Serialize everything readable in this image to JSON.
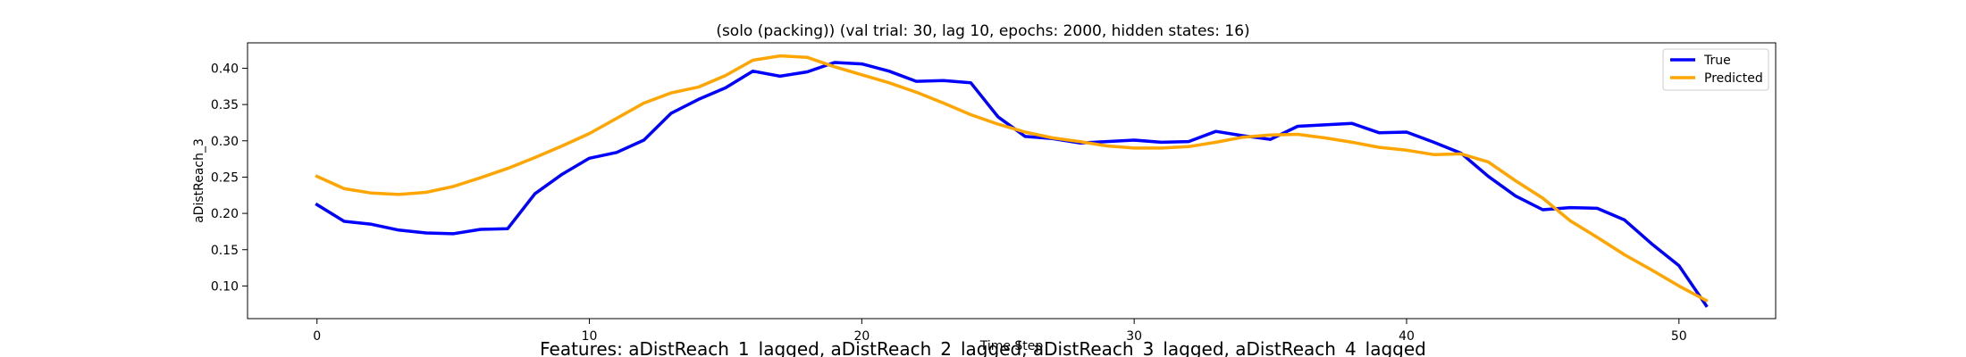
{
  "chart_data": {
    "type": "line",
    "title": "(solo (packing)) (val trial: 30, lag 10, epochs: 2000, hidden states: 16)",
    "xlabel": "Time Step",
    "ylabel": "aDistReach_3",
    "caption": "Features: aDistReach_1_lagged, aDistReach_2_lagged, aDistReach_3_lagged, aDistReach_4_lagged",
    "xlim": [
      -2.55,
      53.55
    ],
    "ylim": [
      0.055,
      0.435
    ],
    "xticks": [
      0,
      10,
      20,
      30,
      40,
      50
    ],
    "yticks": [
      0.1,
      0.15,
      0.2,
      0.25,
      0.3,
      0.35,
      0.4
    ],
    "legend_position": "top-right",
    "grid": false,
    "series": [
      {
        "name": "True",
        "color": "#0000ff",
        "x": [
          0,
          1,
          2,
          3,
          4,
          5,
          6,
          7,
          8,
          9,
          10,
          11,
          12,
          13,
          14,
          15,
          16,
          17,
          18,
          19,
          20,
          21,
          22,
          23,
          24,
          25,
          26,
          27,
          28,
          29,
          30,
          31,
          32,
          33,
          34,
          35,
          36,
          37,
          38,
          39,
          40,
          41,
          42,
          43,
          44,
          45,
          46,
          47,
          48,
          49,
          50,
          51
        ],
        "values": [
          0.212,
          0.189,
          0.185,
          0.177,
          0.173,
          0.172,
          0.178,
          0.179,
          0.227,
          0.254,
          0.276,
          0.284,
          0.301,
          0.338,
          0.357,
          0.373,
          0.396,
          0.389,
          0.395,
          0.408,
          0.406,
          0.396,
          0.382,
          0.383,
          0.38,
          0.333,
          0.306,
          0.303,
          0.297,
          0.299,
          0.301,
          0.298,
          0.299,
          0.313,
          0.307,
          0.302,
          0.32,
          0.322,
          0.324,
          0.311,
          0.312,
          0.298,
          0.283,
          0.251,
          0.224,
          0.205,
          0.208,
          0.207,
          0.191,
          0.158,
          0.128,
          0.073
        ]
      },
      {
        "name": "Predicted",
        "color": "#ffa500",
        "x": [
          0,
          1,
          2,
          3,
          4,
          5,
          6,
          7,
          8,
          9,
          10,
          11,
          12,
          13,
          14,
          15,
          16,
          17,
          18,
          19,
          20,
          21,
          22,
          23,
          24,
          25,
          26,
          27,
          28,
          29,
          30,
          31,
          32,
          33,
          34,
          35,
          36,
          37,
          38,
          39,
          40,
          41,
          42,
          43,
          44,
          45,
          46,
          47,
          48,
          49,
          50,
          51
        ],
        "values": [
          0.251,
          0.234,
          0.228,
          0.226,
          0.229,
          0.237,
          0.249,
          0.262,
          0.277,
          0.293,
          0.31,
          0.331,
          0.352,
          0.366,
          0.374,
          0.39,
          0.411,
          0.417,
          0.415,
          0.402,
          0.391,
          0.38,
          0.367,
          0.352,
          0.336,
          0.323,
          0.312,
          0.304,
          0.299,
          0.293,
          0.29,
          0.29,
          0.292,
          0.298,
          0.305,
          0.308,
          0.309,
          0.304,
          0.298,
          0.291,
          0.287,
          0.281,
          0.282,
          0.271,
          0.245,
          0.221,
          0.19,
          0.167,
          0.143,
          0.122,
          0.1,
          0.08
        ]
      }
    ]
  }
}
